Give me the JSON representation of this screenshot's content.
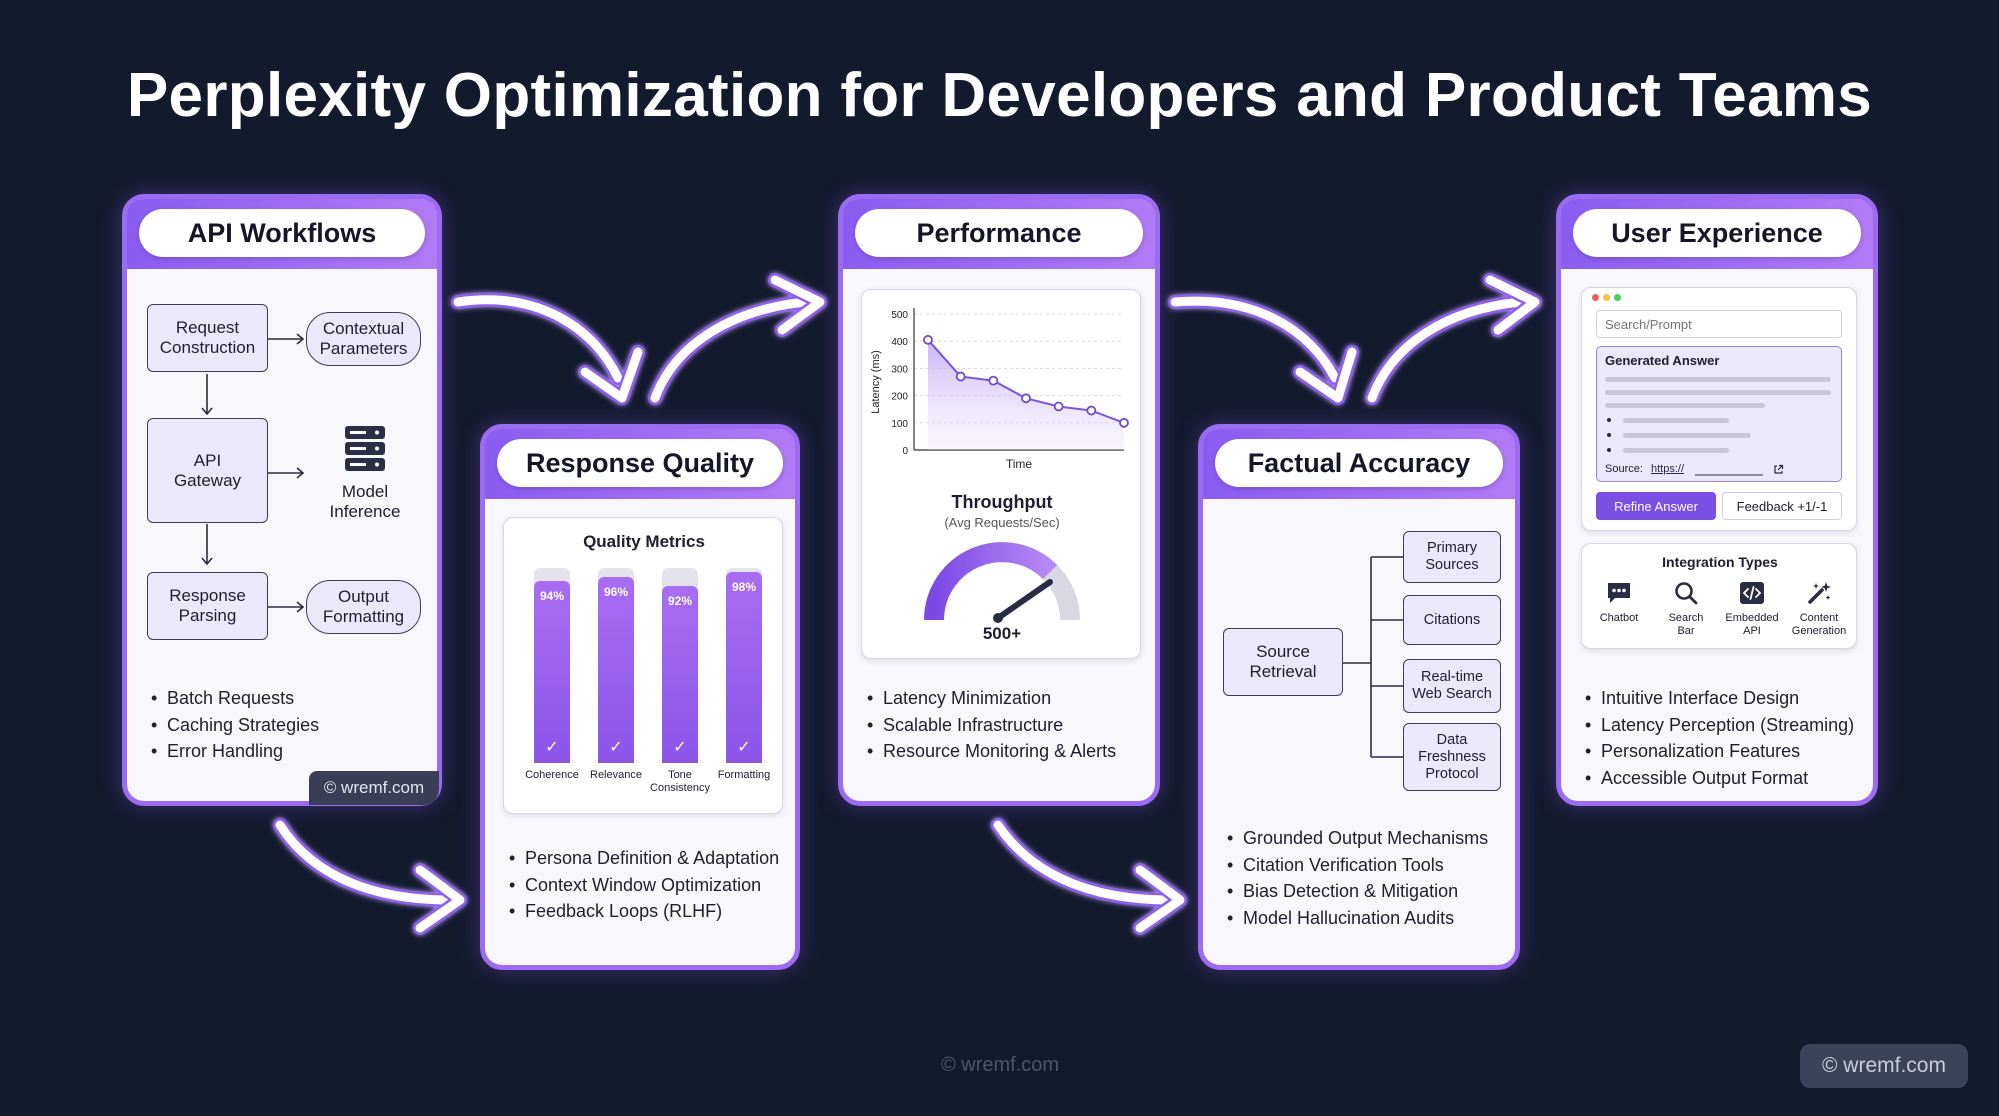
{
  "title": "Perplexity Optimization for Developers and Product Teams",
  "colors": {
    "background": "#141a2e",
    "accent": "#9b6cf2",
    "box_fill": "#ece8fb"
  },
  "api_workflows": {
    "header": "API Workflows",
    "request_construction": "Request\nConstruction",
    "contextual_parameters": "Contextual\nParameters",
    "api_gateway": "API\nGateway",
    "model_inference": "Model\nInference",
    "response_parsing": "Response\nParsing",
    "output_formatting": "Output\nFormatting",
    "bullets": [
      "Batch Requests",
      "Caching Strategies",
      "Error Handling"
    ],
    "watermark": "© wremf.com"
  },
  "response_quality": {
    "header": "Response Quality",
    "panel_title": "Quality Metrics",
    "metrics": [
      {
        "label": "Coherence",
        "value": 94,
        "display": "94%"
      },
      {
        "label": "Relevance",
        "value": 96,
        "display": "96%"
      },
      {
        "label": "Tone\nConsistency",
        "value": 92,
        "display": "92%"
      },
      {
        "label": "Formatting",
        "value": 98,
        "display": "98%"
      }
    ],
    "bullets": [
      "Persona Definition & Adaptation",
      "Context Window Optimization",
      "Feedback Loops (RLHF)"
    ]
  },
  "performance": {
    "header": "Performance",
    "throughput_title": "Throughput",
    "throughput_subtitle": "(Avg Requests/Sec)",
    "gauge_value": "500+",
    "bullets": [
      "Latency Minimization",
      "Scalable Infrastructure",
      "Resource Monitoring & Alerts"
    ]
  },
  "chart_data": {
    "type": "area",
    "xlabel": "Time",
    "ylabel": "Latency (ms)",
    "ylim": [
      0,
      500
    ],
    "y_ticks": [
      "0",
      "100",
      "200",
      "300",
      "400",
      "500"
    ],
    "values": [
      405,
      270,
      255,
      190,
      160,
      145,
      100
    ],
    "grid": true
  },
  "factual_accuracy": {
    "header": "Factual Accuracy",
    "source_retrieval": "Source\nRetrieval",
    "branches": [
      "Primary\nSources",
      "Citations",
      "Real-time\nWeb Search",
      "Data\nFreshness\nProtocol"
    ],
    "bullets": [
      "Grounded Output Mechanisms",
      "Citation Verification Tools",
      "Bias Detection & Mitigation",
      "Model Hallucination Audits"
    ]
  },
  "user_experience": {
    "header": "User Experience",
    "search_placeholder": "Search/Prompt",
    "generated_answer": "Generated Answer",
    "source_label": "Source:",
    "source_link": "https://",
    "refine_button": "Refine Answer",
    "feedback_button": "Feedback +1/-1",
    "integration_title": "Integration Types",
    "integrations": [
      {
        "label": "Chatbot",
        "icon": "chat-icon"
      },
      {
        "label": "Search\nBar",
        "icon": "search-icon"
      },
      {
        "label": "Embedded\nAPI",
        "icon": "code-icon"
      },
      {
        "label": "Content\nGeneration",
        "icon": "magic-wand-icon"
      }
    ],
    "bullets": [
      "Intuitive Interface Design",
      "Latency Perception (Streaming)",
      "Personalization Features",
      "Accessible Output Format"
    ]
  },
  "footer": {
    "center_watermark": "© wremf.com",
    "corner_watermark": "© wremf.com"
  }
}
